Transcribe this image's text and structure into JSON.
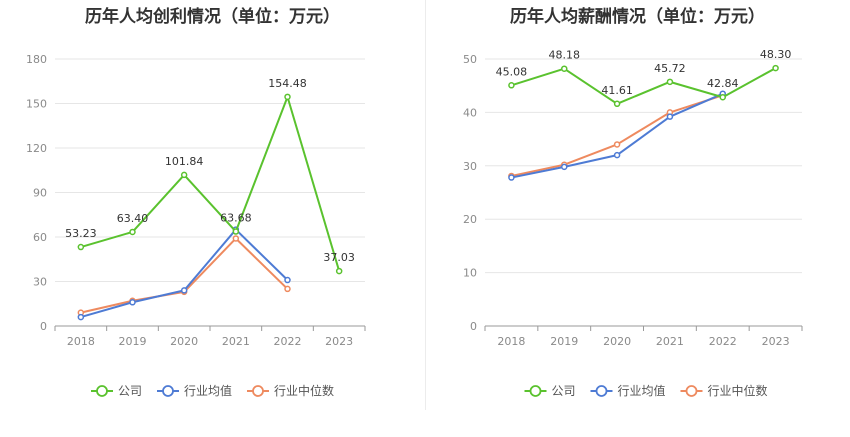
{
  "charts": [
    {
      "title": "历年人均创利情况（单位：万元）",
      "chart_data": {
        "type": "line",
        "title": "历年人均创利情况（单位：万元）",
        "categories": [
          "2018",
          "2019",
          "2020",
          "2021",
          "2022",
          "2023"
        ],
        "ylim": [
          0,
          180
        ],
        "yticks": [
          0,
          30,
          60,
          90,
          120,
          150,
          180
        ],
        "grid": true,
        "legend_position": "bottom",
        "series": [
          {
            "name": "公司",
            "color": "#5ac22e",
            "values": [
              53.23,
              63.4,
              101.84,
              63.68,
              154.48,
              37.03
            ],
            "labels": [
              "53.23",
              "63.40",
              "101.84",
              "63.68",
              "154.48",
              "37.03"
            ]
          },
          {
            "name": "行业均值",
            "color": "#4e7bd4",
            "values": [
              6,
              16,
              24,
              65,
              31,
              null
            ]
          },
          {
            "name": "行业中位数",
            "color": "#ee8a5f",
            "values": [
              9,
              17,
              23,
              59,
              25,
              null
            ]
          }
        ]
      }
    },
    {
      "title": "历年人均薪酬情况（单位：万元）",
      "chart_data": {
        "type": "line",
        "title": "历年人均薪酬情况（单位：万元）",
        "categories": [
          "2018",
          "2019",
          "2020",
          "2021",
          "2022",
          "2023"
        ],
        "ylim": [
          0,
          50
        ],
        "yticks": [
          0,
          10,
          20,
          30,
          40,
          50
        ],
        "grid": true,
        "legend_position": "bottom",
        "series": [
          {
            "name": "公司",
            "color": "#5ac22e",
            "values": [
              45.08,
              48.18,
              41.61,
              45.72,
              42.84,
              48.3
            ],
            "labels": [
              "45.08",
              "48.18",
              "41.61",
              "45.72",
              "42.84",
              "48.30"
            ]
          },
          {
            "name": "行业均值",
            "color": "#4e7bd4",
            "values": [
              27.8,
              29.8,
              32.0,
              39.2,
              43.5,
              null
            ]
          },
          {
            "name": "行业中位数",
            "color": "#ee8a5f",
            "values": [
              28.1,
              30.2,
              34.0,
              40.0,
              43.2,
              null
            ]
          }
        ]
      }
    }
  ]
}
